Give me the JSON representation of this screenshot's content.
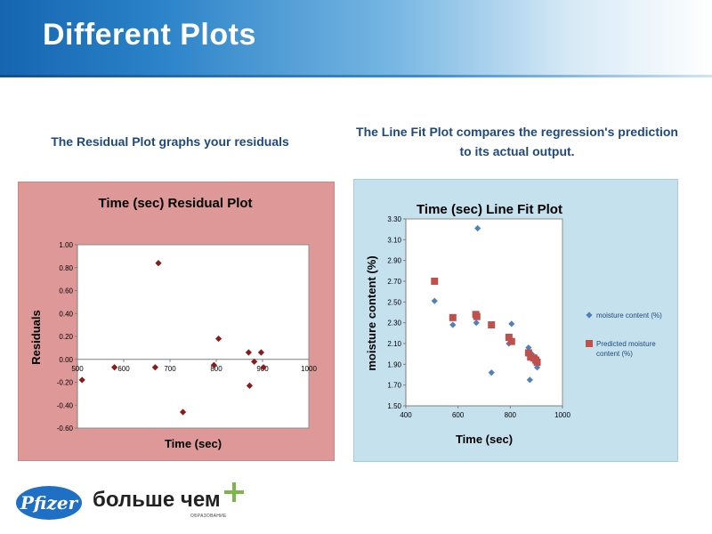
{
  "header": {
    "title": "Different Plots"
  },
  "captions": {
    "left": "The Residual Plot graphs your residuals",
    "right": "The Line Fit Plot compares the regression's prediction to its actual output."
  },
  "chart_data": [
    {
      "type": "scatter",
      "title": "Time (sec)  Residual Plot",
      "xlabel": "Time (sec)",
      "ylabel": "Residuals",
      "xlim": [
        500,
        1000
      ],
      "ylim": [
        -0.6,
        1.0
      ],
      "x_ticks": [
        "500",
        "600",
        "700",
        "800",
        "900",
        "1000"
      ],
      "y_ticks": [
        "1.00",
        "0.80",
        "0.60",
        "0.40",
        "0.20",
        "0.00",
        "-0.20",
        "-0.40",
        "-0.60"
      ],
      "grid": false,
      "series": [
        {
          "color": "#8b1a1a",
          "marker": "diamond",
          "points": [
            [
              510,
              -0.18
            ],
            [
              580,
              -0.07
            ],
            [
              668,
              -0.07
            ],
            [
              675,
              0.84
            ],
            [
              728,
              -0.46
            ],
            [
              795,
              -0.05
            ],
            [
              805,
              0.18
            ],
            [
              870,
              0.06
            ],
            [
              872,
              -0.23
            ],
            [
              882,
              -0.02
            ],
            [
              897,
              0.06
            ],
            [
              902,
              -0.07
            ]
          ]
        }
      ]
    },
    {
      "type": "scatter",
      "title": "Time (sec) Line Fit  Plot",
      "xlabel": "Time (sec)",
      "ylabel": "moisture content (%)",
      "xlim": [
        400,
        1000
      ],
      "ylim": [
        1.5,
        3.3
      ],
      "x_ticks": [
        "400",
        "600",
        "800",
        "1000"
      ],
      "y_ticks": [
        "3.30",
        "3.10",
        "2.90",
        "2.70",
        "2.50",
        "2.30",
        "2.10",
        "1.90",
        "1.70",
        "1.50"
      ],
      "grid": false,
      "legend_position": "right",
      "series": [
        {
          "name": "moisture content (%)",
          "color": "#4f81bd",
          "marker": "diamond",
          "points": [
            [
              510,
              2.51
            ],
            [
              580,
              2.28
            ],
            [
              670,
              2.3
            ],
            [
              675,
              3.21
            ],
            [
              728,
              1.82
            ],
            [
              795,
              2.1
            ],
            [
              805,
              2.29
            ],
            [
              870,
              2.06
            ],
            [
              875,
              1.75
            ],
            [
              882,
              2.0
            ],
            [
              897,
              1.97
            ],
            [
              903,
              1.87
            ]
          ]
        },
        {
          "name": "Predicted moisture content (%)",
          "color": "#c0504d",
          "marker": "square",
          "points": [
            [
              510,
              2.7
            ],
            [
              580,
              2.35
            ],
            [
              668,
              2.38
            ],
            [
              672,
              2.36
            ],
            [
              728,
              2.28
            ],
            [
              795,
              2.16
            ],
            [
              805,
              2.12
            ],
            [
              870,
              2.01
            ],
            [
              878,
              1.97
            ],
            [
              890,
              1.96
            ],
            [
              898,
              1.94
            ],
            [
              903,
              1.92
            ]
          ]
        }
      ]
    }
  ],
  "footer": {
    "logo_text": "Pfizer",
    "tagline": "больше чем",
    "tagline_sub": "ОБРАЗОВАНИЕ"
  }
}
